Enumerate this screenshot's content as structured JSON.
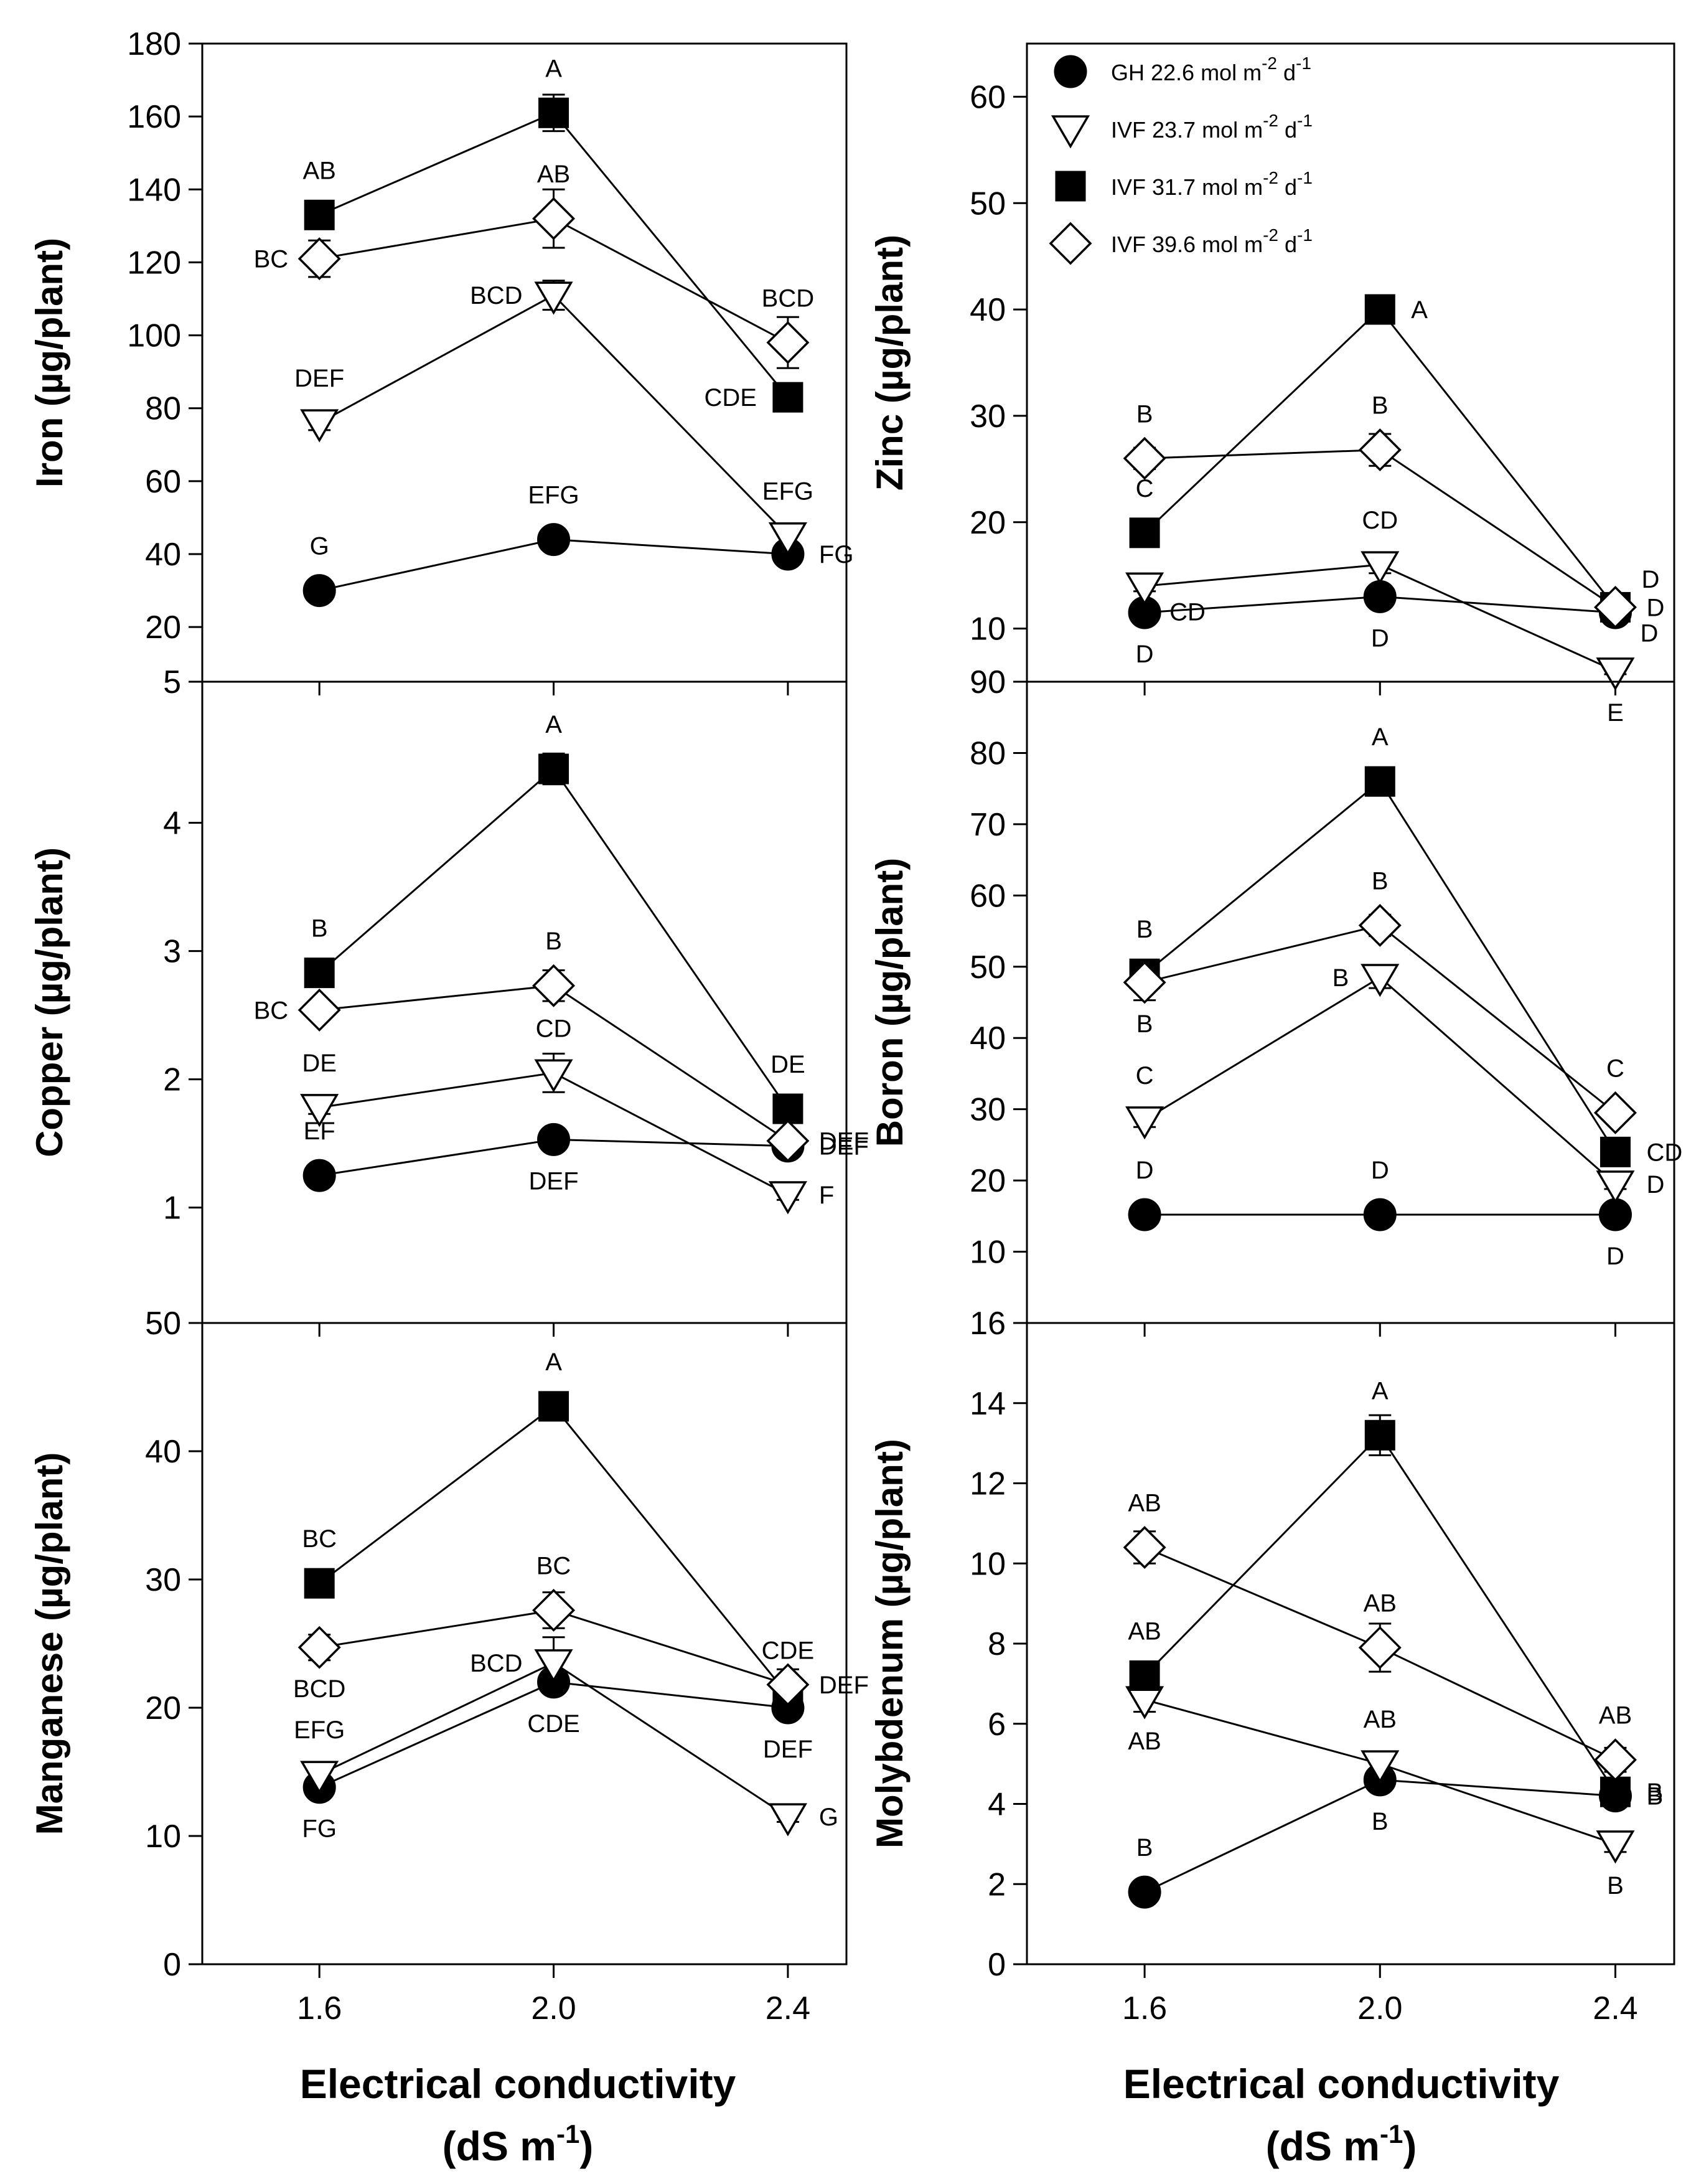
{
  "figure": {
    "xlabel_line1": "Electrical conductivity",
    "xlabel_line2_main": "(dS m",
    "xlabel_line2_sup": "-1",
    "xlabel_line2_end": ")"
  },
  "legend": [
    {
      "label": "GH 22.6 mol m",
      "sup1": "-2",
      "mid": " d",
      "sup2": "-1",
      "marker": "filled-circle"
    },
    {
      "label": "IVF 23.7 mol m",
      "sup1": "-2",
      "mid": " d",
      "sup2": "-1",
      "marker": "open-triangle-down"
    },
    {
      "label": "IVF 31.7 mol m",
      "sup1": "-2",
      "mid": " d",
      "sup2": "-1",
      "marker": "filled-square"
    },
    {
      "label": "IVF 39.6 mol m",
      "sup1": "-2",
      "mid": " d",
      "sup2": "-1",
      "marker": "open-diamond"
    }
  ],
  "chart_data": [
    {
      "id": "iron",
      "type": "line",
      "ylabel": "Iron (µg/plant)",
      "x": [
        1.6,
        2.0,
        2.4
      ],
      "xticks": [
        "1.6",
        "2.0",
        "2.4"
      ],
      "ylim": [
        5,
        180
      ],
      "yticks": [
        5,
        20,
        40,
        60,
        80,
        100,
        120,
        140,
        160,
        180
      ],
      "series": [
        {
          "name": "GH 22.6 mol m-2 d-1",
          "values": [
            30,
            44,
            40
          ],
          "err": [
            0,
            0,
            0
          ],
          "letters": [
            "G",
            "EFG",
            "FG"
          ]
        },
        {
          "name": "IVF 23.7 mol m-2 d-1",
          "values": [
            76,
            111,
            45
          ],
          "err": [
            2,
            4,
            2
          ],
          "letters": [
            "DEF",
            "BCD",
            "EFG"
          ]
        },
        {
          "name": "IVF 31.7 mol m-2 d-1",
          "values": [
            133,
            161,
            83
          ],
          "err": [
            2,
            5,
            2
          ],
          "letters": [
            "AB",
            "A",
            "CDE"
          ]
        },
        {
          "name": "IVF 39.6 mol m-2 d-1",
          "values": [
            121,
            132,
            98
          ],
          "err": [
            5,
            8,
            7
          ],
          "letters": [
            "BC",
            "AB",
            "BCD"
          ]
        }
      ]
    },
    {
      "id": "zinc",
      "type": "line",
      "ylabel": "Zinc (µg/plant)",
      "x": [
        1.6,
        2.0,
        2.4
      ],
      "xticks": [
        "1.6",
        "2.0",
        "2.4"
      ],
      "ylim": [
        5,
        65
      ],
      "yticks": [
        10,
        20,
        30,
        40,
        50,
        60
      ],
      "series": [
        {
          "name": "GH 22.6 mol m-2 d-1",
          "values": [
            11.5,
            13,
            11.5
          ],
          "err": [
            0,
            0,
            0
          ],
          "letters": [
            "D",
            "D",
            "D"
          ]
        },
        {
          "name": "IVF 23.7 mol m-2 d-1",
          "values": [
            14,
            16,
            6
          ],
          "err": [
            0.5,
            0.8,
            0.3
          ],
          "letters": [
            "CD",
            "CD",
            "E"
          ]
        },
        {
          "name": "IVF 31.7 mol m-2 d-1",
          "values": [
            19,
            40,
            12
          ],
          "err": [
            0.5,
            0.5,
            0.3
          ],
          "letters": [
            "C",
            "A",
            "D"
          ]
        },
        {
          "name": "IVF 39.6 mol m-2 d-1",
          "values": [
            26,
            26.8,
            12
          ],
          "err": [
            1,
            1.5,
            0.5
          ],
          "letters": [
            "B",
            "B",
            "D"
          ]
        }
      ]
    },
    {
      "id": "copper",
      "type": "line",
      "ylabel": "Copper (µg/plant)",
      "x": [
        1.6,
        2.0,
        2.4
      ],
      "xticks": [
        "1.6",
        "2.0",
        "2.4"
      ],
      "ylim": [
        0.1,
        5.1
      ],
      "yticks": [
        1,
        2,
        3,
        4
      ],
      "series": [
        {
          "name": "GH 22.6 mol m-2 d-1",
          "values": [
            1.25,
            1.53,
            1.48
          ],
          "err": [
            0,
            0,
            0
          ],
          "letters": [
            "EF",
            "DEF",
            "DEF"
          ]
        },
        {
          "name": "IVF 23.7 mol m-2 d-1",
          "values": [
            1.78,
            2.05,
            1.1
          ],
          "err": [
            0.05,
            0.15,
            0.04
          ],
          "letters": [
            "DE",
            "CD",
            "F"
          ]
        },
        {
          "name": "IVF 31.7 mol m-2 d-1",
          "values": [
            2.83,
            4.42,
            1.77
          ],
          "err": [
            0.05,
            0.12,
            0.05
          ],
          "letters": [
            "B",
            "A",
            "DE"
          ]
        },
        {
          "name": "IVF 39.6 mol m-2 d-1",
          "values": [
            2.54,
            2.73,
            1.52
          ],
          "err": [
            0.05,
            0.12,
            0.05
          ],
          "letters": [
            "BC",
            "B",
            "DEF"
          ]
        }
      ]
    },
    {
      "id": "boron",
      "type": "line",
      "ylabel": "Boron (µg/plant)",
      "x": [
        1.6,
        2.0,
        2.4
      ],
      "xticks": [
        "1.6",
        "2.0",
        "2.4"
      ],
      "ylim": [
        0,
        90
      ],
      "yticks": [
        10,
        20,
        30,
        40,
        50,
        60,
        70,
        80,
        90
      ],
      "series": [
        {
          "name": "GH 22.6 mol m-2 d-1",
          "values": [
            15.2,
            15.2,
            15.2
          ],
          "err": [
            0,
            0,
            0
          ],
          "letters": [
            "D",
            "D",
            "D"
          ]
        },
        {
          "name": "IVF 23.7 mol m-2 d-1",
          "values": [
            28.5,
            48.5,
            19.5
          ],
          "err": [
            1,
            1.5,
            0.7
          ],
          "letters": [
            "C",
            "B",
            "D"
          ]
        },
        {
          "name": "IVF 31.7 mol m-2 d-1",
          "values": [
            49,
            76,
            24
          ],
          "err": [
            1,
            1.5,
            0.7
          ],
          "letters": [
            "B",
            "A",
            "CD"
          ]
        },
        {
          "name": "IVF 39.6 mol m-2 d-1",
          "values": [
            47.8,
            55.8,
            29.5
          ],
          "err": [
            2.5,
            1.5,
            1.2
          ],
          "letters": [
            "B",
            "B",
            "C"
          ]
        }
      ]
    },
    {
      "id": "manganese",
      "type": "line",
      "ylabel": "Manganese (µg/plant)",
      "x": [
        1.6,
        2.0,
        2.4
      ],
      "xticks": [
        "1.6",
        "2.0",
        "2.4"
      ],
      "ylim": [
        0,
        50
      ],
      "yticks": [
        0,
        10,
        20,
        30,
        40,
        50
      ],
      "series": [
        {
          "name": "GH 22.6 mol m-2 d-1",
          "values": [
            13.8,
            22,
            20
          ],
          "err": [
            0,
            0,
            0
          ],
          "letters": [
            "FG",
            "CDE",
            "DEF"
          ]
        },
        {
          "name": "IVF 23.7 mol m-2 d-1",
          "values": [
            14.8,
            23.5,
            11.5
          ],
          "err": [
            0.5,
            2,
            0.4
          ],
          "letters": [
            "EFG",
            "BCD",
            "G"
          ]
        },
        {
          "name": "IVF 31.7 mol m-2 d-1",
          "values": [
            29.7,
            43.5,
            21
          ],
          "err": [
            0.5,
            0.8,
            0.5
          ],
          "letters": [
            "BC",
            "A",
            "CDE"
          ]
        },
        {
          "name": "IVF 39.6 mol m-2 d-1",
          "values": [
            24.7,
            27.6,
            21.8
          ],
          "err": [
            1,
            1.4,
            1.2
          ],
          "letters": [
            "BCD",
            "BC",
            "DEF"
          ]
        }
      ]
    },
    {
      "id": "molybdenum",
      "type": "line",
      "ylabel": "Molybdenum (µg/plant)",
      "x": [
        1.6,
        2.0,
        2.4
      ],
      "xticks": [
        "1.6",
        "2.0",
        "2.4"
      ],
      "ylim": [
        0,
        16
      ],
      "yticks": [
        0,
        2,
        4,
        6,
        8,
        10,
        12,
        14,
        16
      ],
      "series": [
        {
          "name": "GH 22.6 mol m-2 d-1",
          "values": [
            1.8,
            4.6,
            4.2
          ],
          "err": [
            0,
            0,
            0
          ],
          "letters": [
            "B",
            "B",
            "B"
          ]
        },
        {
          "name": "IVF 23.7 mol m-2 d-1",
          "values": [
            6.6,
            5,
            3
          ],
          "err": [
            0.3,
            0.3,
            0.2
          ],
          "letters": [
            "AB",
            "AB",
            "B"
          ]
        },
        {
          "name": "IVF 31.7 mol m-2 d-1",
          "values": [
            7.2,
            13.2,
            4.3
          ],
          "err": [
            0.3,
            0.5,
            0.3
          ],
          "letters": [
            "AB",
            "A",
            "B"
          ]
        },
        {
          "name": "IVF 39.6 mol m-2 d-1",
          "values": [
            10.4,
            7.9,
            5.1
          ],
          "err": [
            0.4,
            0.6,
            0.3
          ],
          "letters": [
            "AB",
            "AB",
            "AB"
          ]
        }
      ]
    }
  ]
}
